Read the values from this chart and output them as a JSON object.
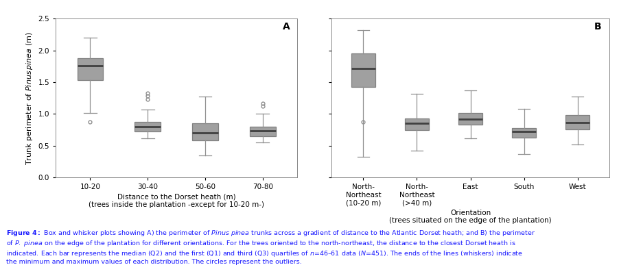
{
  "panel_A": {
    "label": "A",
    "categories": [
      "10-20",
      "30-40",
      "50-60",
      "70-80"
    ],
    "xlabel": "Distance to the Dorset heath (m)",
    "xlabel2": "(trees inside the plantation -except for 10-20 m-)",
    "boxes": [
      {
        "whislo": 1.02,
        "q1": 1.53,
        "med": 1.76,
        "q3": 1.88,
        "whishi": 2.2,
        "fliers": [
          0.87
        ]
      },
      {
        "whislo": 0.62,
        "q1": 0.72,
        "med": 0.8,
        "q3": 0.88,
        "whishi": 1.07,
        "fliers": [
          1.23,
          1.28,
          1.33
        ]
      },
      {
        "whislo": 0.35,
        "q1": 0.58,
        "med": 0.7,
        "q3": 0.85,
        "whishi": 1.27,
        "fliers": []
      },
      {
        "whislo": 0.55,
        "q1": 0.65,
        "med": 0.73,
        "q3": 0.8,
        "whishi": 1.0,
        "fliers": [
          1.12,
          1.17
        ]
      }
    ],
    "ylim": [
      0.0,
      2.5
    ],
    "yticks": [
      0.0,
      0.5,
      1.0,
      1.5,
      2.0,
      2.5
    ]
  },
  "panel_B": {
    "label": "B",
    "categories": [
      "North-\nNortheast\n(10-20 m)",
      "North-\nNortheast\n(>40 m)",
      "East",
      "South",
      "West"
    ],
    "xlabel": "Orientation",
    "xlabel2": "(trees situated on the edge of the plantation)",
    "boxes": [
      {
        "whislo": 0.33,
        "q1": 1.42,
        "med": 1.72,
        "q3": 1.95,
        "whishi": 2.32,
        "fliers": [
          0.87
        ]
      },
      {
        "whislo": 0.42,
        "q1": 0.75,
        "med": 0.85,
        "q3": 0.93,
        "whishi": 1.32,
        "fliers": []
      },
      {
        "whislo": 0.62,
        "q1": 0.83,
        "med": 0.92,
        "q3": 1.02,
        "whishi": 1.37,
        "fliers": []
      },
      {
        "whislo": 0.37,
        "q1": 0.63,
        "med": 0.72,
        "q3": 0.78,
        "whishi": 1.08,
        "fliers": []
      },
      {
        "whislo": 0.52,
        "q1": 0.76,
        "med": 0.86,
        "q3": 0.98,
        "whishi": 1.27,
        "fliers": []
      }
    ],
    "ylim": [
      0.0,
      2.5
    ],
    "yticks": [
      0.0,
      0.5,
      1.0,
      1.5,
      2.0,
      2.5
    ]
  },
  "box_facecolor": "#a0a0a0",
  "box_edgecolor": "#808080",
  "median_color": "#404040",
  "whisker_color": "#909090",
  "flier_edgecolor": "#909090",
  "caption_color": "#1a1aff"
}
